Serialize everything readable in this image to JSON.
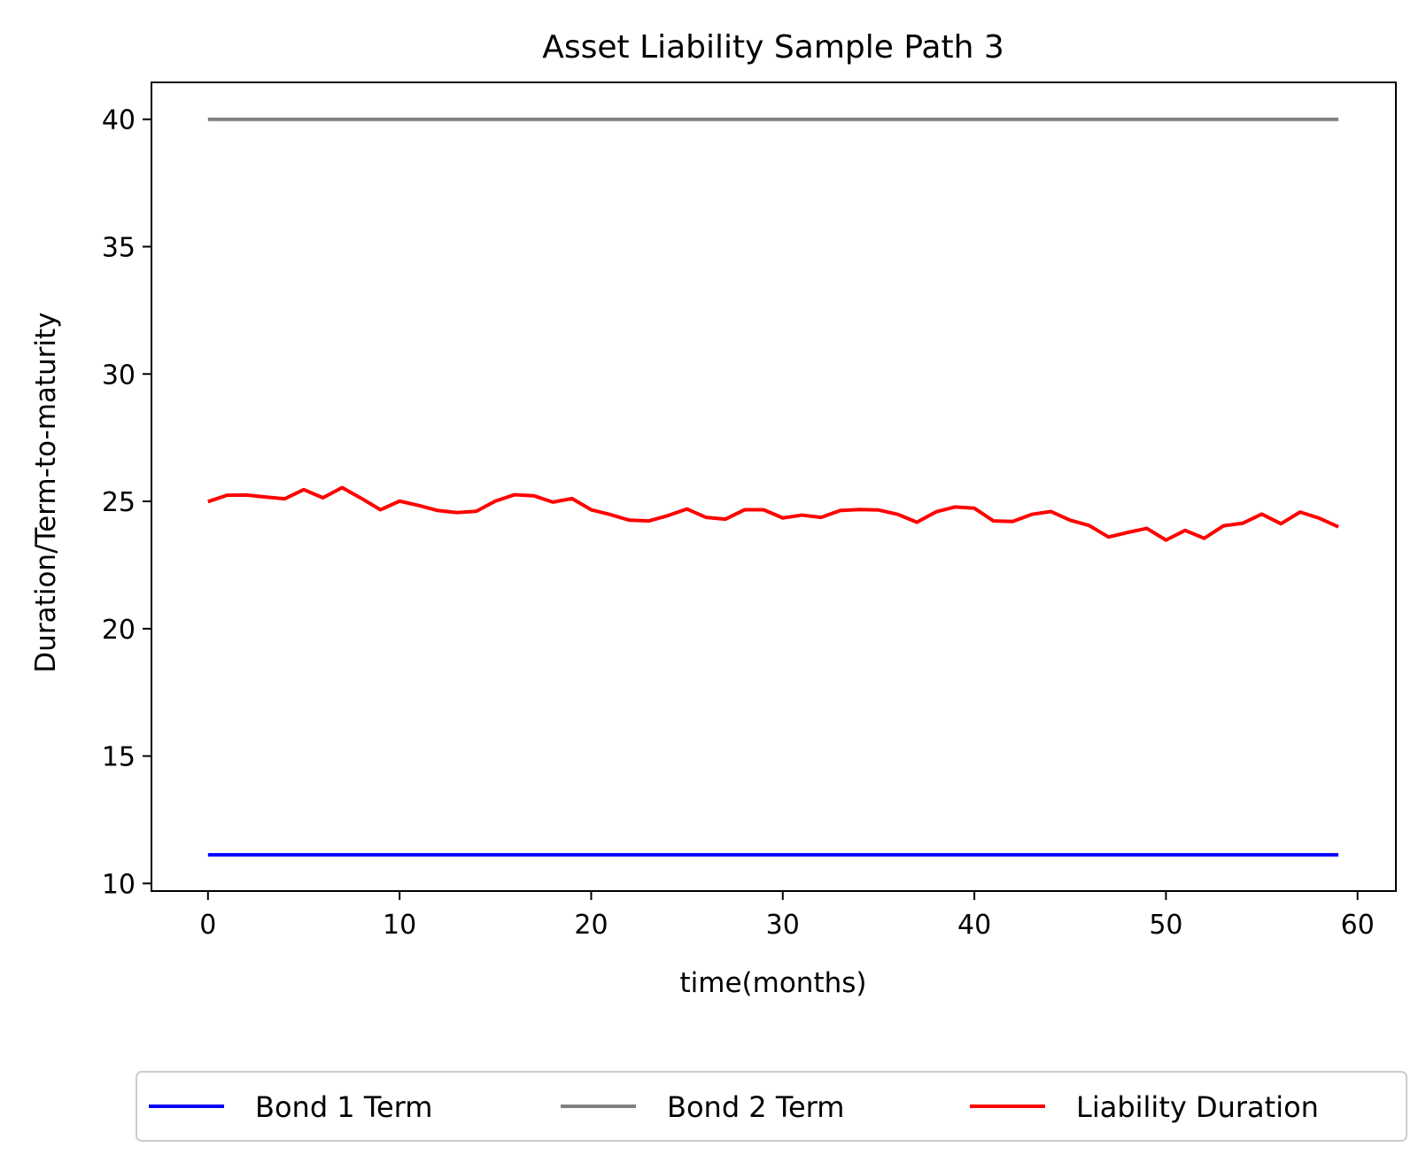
{
  "chart_data": {
    "type": "line",
    "title": "Asset Liability Sample Path 3",
    "xlabel": "time(months)",
    "ylabel": "Duration/Term-to-maturity",
    "xlim": [
      -2.95,
      62.0
    ],
    "ylim": [
      9.7,
      41.45
    ],
    "xticks": [
      0,
      10,
      20,
      30,
      40,
      50,
      60
    ],
    "yticks": [
      10,
      15,
      20,
      25,
      30,
      35,
      40
    ],
    "grid": false,
    "legend_position": "bottom-center",
    "x": [
      0,
      1,
      2,
      3,
      4,
      5,
      6,
      7,
      8,
      9,
      10,
      11,
      12,
      13,
      14,
      15,
      16,
      17,
      18,
      19,
      20,
      21,
      22,
      23,
      24,
      25,
      26,
      27,
      28,
      29,
      30,
      31,
      32,
      33,
      34,
      35,
      36,
      37,
      38,
      39,
      40,
      41,
      42,
      43,
      44,
      45,
      46,
      47,
      48,
      49,
      50,
      51,
      52,
      53,
      54,
      55,
      56,
      57,
      58,
      59
    ],
    "series": [
      {
        "name": "Bond 1 Term",
        "color": "#0000ff",
        "values": [
          11.12,
          11.12,
          11.12,
          11.12,
          11.12,
          11.12,
          11.12,
          11.12,
          11.12,
          11.12,
          11.12,
          11.12,
          11.12,
          11.12,
          11.12,
          11.12,
          11.12,
          11.12,
          11.12,
          11.12,
          11.12,
          11.12,
          11.12,
          11.12,
          11.12,
          11.12,
          11.12,
          11.12,
          11.12,
          11.12,
          11.12,
          11.12,
          11.12,
          11.12,
          11.12,
          11.12,
          11.12,
          11.12,
          11.12,
          11.12,
          11.12,
          11.12,
          11.12,
          11.12,
          11.12,
          11.12,
          11.12,
          11.12,
          11.12,
          11.12,
          11.12,
          11.12,
          11.12,
          11.12,
          11.12,
          11.12,
          11.12,
          11.12,
          11.12,
          11.12
        ]
      },
      {
        "name": "Bond 2 Term",
        "color": "#808080",
        "values": [
          40,
          40,
          40,
          40,
          40,
          40,
          40,
          40,
          40,
          40,
          40,
          40,
          40,
          40,
          40,
          40,
          40,
          40,
          40,
          40,
          40,
          40,
          40,
          40,
          40,
          40,
          40,
          40,
          40,
          40,
          40,
          40,
          40,
          40,
          40,
          40,
          40,
          40,
          40,
          40,
          40,
          40,
          40,
          40,
          40,
          40,
          40,
          40,
          40,
          40,
          40,
          40,
          40,
          40,
          40,
          40,
          40,
          40,
          40,
          40
        ]
      },
      {
        "name": "Liability Duration",
        "color": "#ff0000",
        "values": [
          24.99,
          25.24,
          25.25,
          25.17,
          25.1,
          25.46,
          25.14,
          25.54,
          25.12,
          24.67,
          25.01,
          24.84,
          24.64,
          24.56,
          24.61,
          25.01,
          25.26,
          25.22,
          24.97,
          25.11,
          24.67,
          24.48,
          24.26,
          24.23,
          24.44,
          24.7,
          24.37,
          24.3,
          24.67,
          24.67,
          24.35,
          24.46,
          24.37,
          24.64,
          24.68,
          24.66,
          24.49,
          24.18,
          24.59,
          24.78,
          24.73,
          24.23,
          24.21,
          24.49,
          24.6,
          24.26,
          24.05,
          23.6,
          23.78,
          23.94,
          23.48,
          23.86,
          23.55,
          24.04,
          24.14,
          24.5,
          24.12,
          24.58,
          24.34,
          24.0
        ]
      }
    ]
  }
}
